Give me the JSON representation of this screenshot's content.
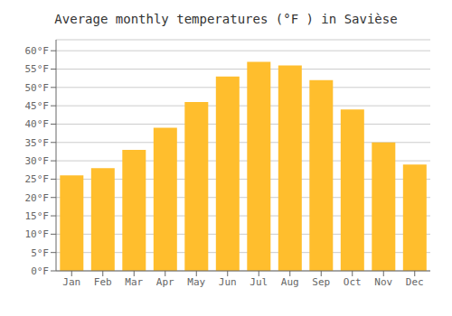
{
  "chart_data": {
    "type": "bar",
    "title": "Average monthly temperatures (°F ) in Savièse",
    "categories": [
      "Jan",
      "Feb",
      "Mar",
      "Apr",
      "May",
      "Jun",
      "Jul",
      "Aug",
      "Sep",
      "Oct",
      "Nov",
      "Dec"
    ],
    "values": [
      26,
      28,
      33,
      39,
      46,
      53,
      57,
      56,
      52,
      44,
      35,
      29
    ],
    "color": "#FFBE2D",
    "ylim": [
      0,
      63
    ],
    "yticks": [
      {
        "value": 0,
        "label": "0°F"
      },
      {
        "value": 5,
        "label": "5°F"
      },
      {
        "value": 10,
        "label": "10°F"
      },
      {
        "value": 15,
        "label": "15°F"
      },
      {
        "value": 20,
        "label": "20°F"
      },
      {
        "value": 25,
        "label": "25°F"
      },
      {
        "value": 30,
        "label": "30°F"
      },
      {
        "value": 35,
        "label": "35°F"
      },
      {
        "value": 40,
        "label": "40°F"
      },
      {
        "value": 45,
        "label": "45°F"
      },
      {
        "value": 50,
        "label": "50°F"
      },
      {
        "value": 55,
        "label": "55°F"
      },
      {
        "value": 60,
        "label": "60°F"
      }
    ],
    "grid": true
  }
}
